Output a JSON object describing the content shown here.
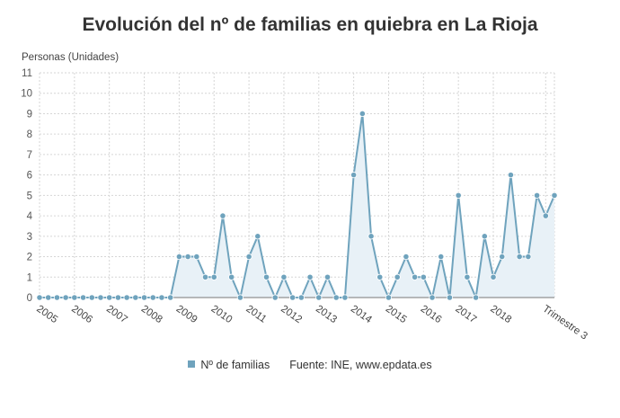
{
  "chart_data": {
    "type": "area",
    "title": "Evolución del nº de familias en quiebra en La Rioja",
    "ylabel": "Personas (Unidades)",
    "xlabel": "",
    "ylim": [
      0,
      11
    ],
    "yticks": [
      0,
      1,
      2,
      3,
      4,
      5,
      6,
      7,
      8,
      9,
      10,
      11
    ],
    "grid": true,
    "x_tick_labels": [
      "2005",
      "2006",
      "2007",
      "2008",
      "2009",
      "2010",
      "2011",
      "2012",
      "2013",
      "2014",
      "2015",
      "2016",
      "2017",
      "2018",
      "Trimestre 3"
    ],
    "x_tick_label_positions": [
      0,
      4,
      8,
      12,
      16,
      20,
      24,
      28,
      32,
      36,
      40,
      44,
      48,
      52,
      58
    ],
    "series": [
      {
        "name": "Nº de familias",
        "color": "#6fa3bd",
        "values": [
          0,
          0,
          0,
          0,
          0,
          0,
          0,
          0,
          0,
          0,
          0,
          0,
          0,
          0,
          0,
          0,
          2,
          2,
          2,
          1,
          1,
          4,
          1,
          0,
          2,
          3,
          1,
          0,
          1,
          0,
          0,
          1,
          0,
          1,
          0,
          0,
          6,
          9,
          3,
          1,
          0,
          1,
          2,
          1,
          1,
          0,
          2,
          0,
          5,
          1,
          0,
          3,
          1,
          2,
          6,
          2,
          2,
          5,
          4,
          5
        ]
      }
    ],
    "legend_position": "bottom-center"
  },
  "legend": {
    "series_label": "Nº de familias",
    "source": "Fuente: INE, www.epdata.es"
  }
}
